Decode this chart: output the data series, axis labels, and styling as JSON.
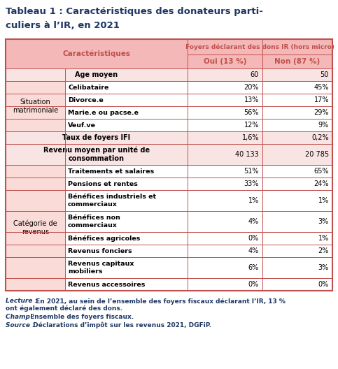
{
  "title_line1": "Tableau 1 : Caractéristiques des donateurs parti-",
  "title_line2": "culiers à l’IR, en 2021",
  "header_main": "Foyers déclarant des dons IR (hors micro)",
  "header_col1": "Caractéristiques",
  "header_oui": "Oui (13 %)",
  "header_non": "Non (87 %)",
  "rows": [
    {
      "group": "",
      "label": "Age moyen",
      "oui": "60",
      "non": "50",
      "span": true,
      "multiline": false
    },
    {
      "group": "Situation\nmatrimoniale",
      "label": "Celibataire",
      "oui": "20%",
      "non": "45%",
      "span": false,
      "multiline": false
    },
    {
      "group": "",
      "label": "Divorce.e",
      "oui": "13%",
      "non": "17%",
      "span": false,
      "multiline": false
    },
    {
      "group": "",
      "label": "Marie.e ou pacse.e",
      "oui": "56%",
      "non": "29%",
      "span": false,
      "multiline": false
    },
    {
      "group": "",
      "label": "Veuf.ve",
      "oui": "12%",
      "non": "9%",
      "span": false,
      "multiline": false
    },
    {
      "group": "",
      "label": "Taux de foyers IFI",
      "oui": "1,6%",
      "non": "0,2%",
      "span": true,
      "multiline": false
    },
    {
      "group": "",
      "label": "Revenu moyen par unité de\nconsommation",
      "oui": "40 133",
      "non": "20 785",
      "span": true,
      "multiline": true
    },
    {
      "group": "Catégorie de\nrevenus",
      "label": "Traitements et salaires",
      "oui": "51%",
      "non": "65%",
      "span": false,
      "multiline": false
    },
    {
      "group": "",
      "label": "Pensions et rentes",
      "oui": "33%",
      "non": "24%",
      "span": false,
      "multiline": false
    },
    {
      "group": "",
      "label": "Bénéfices industriels et\ncommerciaux",
      "oui": "1%",
      "non": "1%",
      "span": false,
      "multiline": true
    },
    {
      "group": "",
      "label": "Bénéfices non\ncommerciaux",
      "oui": "4%",
      "non": "3%",
      "span": false,
      "multiline": true
    },
    {
      "group": "",
      "label": "Bénéfices agricoles",
      "oui": "0%",
      "non": "1%",
      "span": false,
      "multiline": false
    },
    {
      "group": "",
      "label": "Revenus fonciers",
      "oui": "4%",
      "non": "2%",
      "span": false,
      "multiline": false
    },
    {
      "group": "",
      "label": "Revenus capitaux\nmobiliers",
      "oui": "6%",
      "non": "3%",
      "span": false,
      "multiline": true
    },
    {
      "group": "",
      "label": "Revenus accessoires",
      "oui": "0%",
      "non": "0%",
      "span": false,
      "multiline": false
    }
  ],
  "group_spans": {
    "Situation\nmatrimoniale": [
      1,
      4
    ],
    "Catégorie de\nrevenus": [
      7,
      14
    ]
  },
  "colors": {
    "title": "#1F3864",
    "header_bg": "#F4B8B8",
    "header_text": "#C0504D",
    "group_bg": "#FADBD8",
    "span_bg": "#F9E4E4",
    "data_bg": "#FFFFFF",
    "border": "#C0504D",
    "footnote": "#1F3864",
    "footnote_italic": "#1F3864"
  },
  "footnotes": [
    {
      "italic": "Lecture :",
      "normal": " En 2021, au sein de l’ensemble des foyers fiscaux déclarant l’IR, 13 %\nont également déclaré des dons."
    },
    {
      "italic": "Champ :",
      "normal": " Ensemble des foyers fiscaux."
    },
    {
      "italic": "Source :",
      "normal": " Déclarations d’impôt sur les revenus 2021, DGFiP."
    }
  ]
}
